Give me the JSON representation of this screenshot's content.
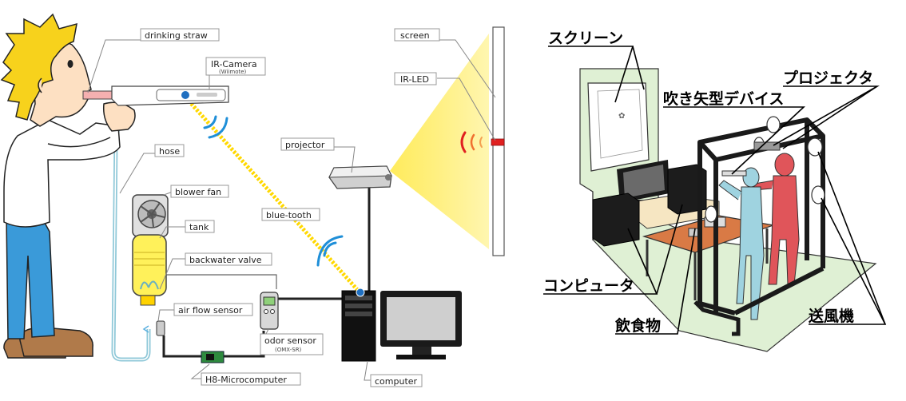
{
  "left_diagram": {
    "labels": {
      "drinking_straw": "drinking straw",
      "ir_camera": "IR-Camera",
      "ir_camera_sub": "(Wiimote)",
      "screen": "screen",
      "ir_led": "IR-LED",
      "hose": "hose",
      "projector": "projector",
      "blower_fan": "blower fan",
      "tank": "tank",
      "blue_tooth": "blue-tooth",
      "backwater_valve": "backwater valve",
      "air_flow_sensor": "air flow sensor",
      "odor_sensor": "odor sensor",
      "odor_sensor_sub": "(OMX-SR)",
      "h8_microcomputer": "H8-Microcomputer",
      "computer": "computer"
    }
  },
  "right_diagram": {
    "labels": {
      "screen": "スクリーン",
      "projector": "プロジェクタ",
      "blow_device": "吹き矢型デバイス",
      "computer": "コンピュータ",
      "food": "飲食物",
      "fan": "送風機"
    }
  },
  "colors": {
    "hair": "#f7d21c",
    "shirt": "#ffffff",
    "pants": "#3a9ad9",
    "shoes": "#b07a4a",
    "bluetooth": "#1f8fd8",
    "beam": "#fff080",
    "ir_led": "#e02020",
    "floor": "#dff0d4",
    "red_figure": "#e0555a",
    "blue_figure": "#9fd3e0"
  }
}
